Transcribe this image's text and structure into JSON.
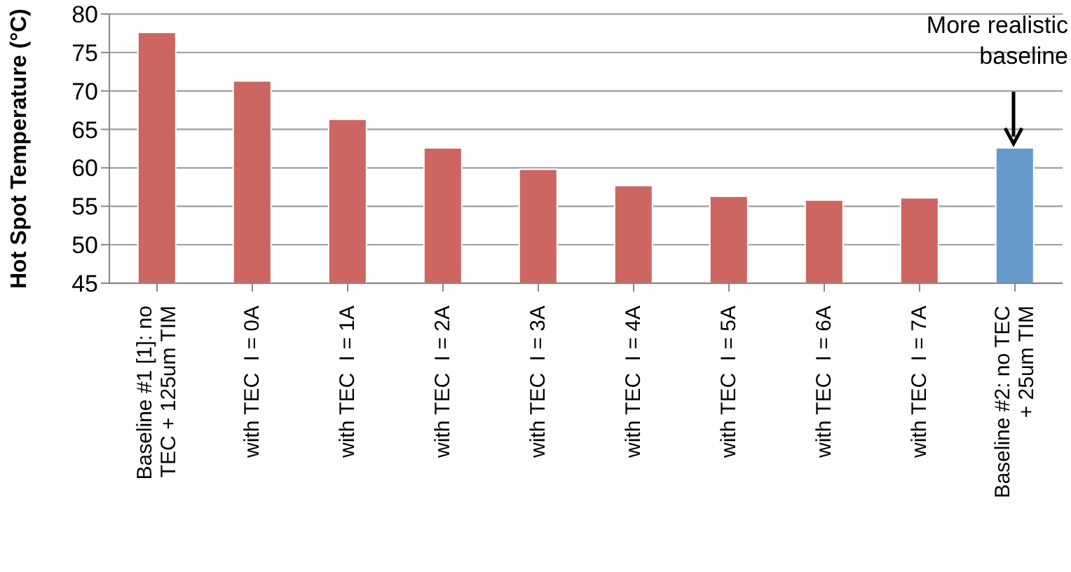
{
  "chart_data": {
    "type": "bar",
    "ylabel": "Hot Spot Temperature (°C)",
    "categories": [
      "Baseline #1 [1]: no TEC + 125um TIM",
      "with TEC  I = 0A",
      "with TEC  I = 1A",
      "with TEC  I = 2A",
      "with TEC  I = 3A",
      "with TEC  I = 4A",
      "with TEC  I = 5A",
      "with TEC  I = 6A",
      "with TEC  I = 7A",
      "Baseline #2: no TEC + 25um TIM"
    ],
    "values": [
      77.6,
      71.3,
      66.3,
      62.6,
      59.8,
      57.7,
      56.3,
      55.8,
      56.1,
      62.6
    ],
    "colors": [
      "#cd6660",
      "#cd6660",
      "#cd6660",
      "#cd6660",
      "#cd6660",
      "#cd6660",
      "#cd6660",
      "#cd6660",
      "#cd6660",
      "#6699cc"
    ],
    "ylim": [
      45,
      80
    ],
    "yticks": [
      45,
      50,
      55,
      60,
      65,
      70,
      75,
      80
    ],
    "grid": "y",
    "legend": false,
    "annotations": [
      {
        "text": "More realistic baseline",
        "x": "Baseline #2: no TEC + 25um TIM",
        "y": 62.6
      }
    ]
  }
}
